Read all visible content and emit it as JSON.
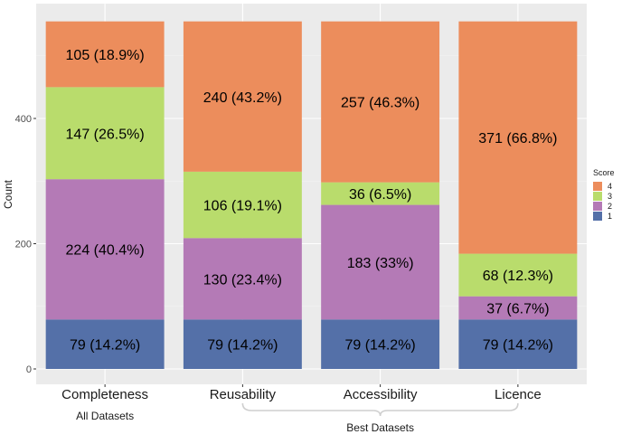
{
  "chart_data": {
    "type": "bar",
    "stacked": true,
    "categories": [
      "Completeness",
      "Reusability",
      "Accessibility",
      "Licence"
    ],
    "groups": [
      {
        "label": "All Datasets",
        "categories": [
          "Completeness"
        ]
      },
      {
        "label": "Best Datasets",
        "categories": [
          "Reusability",
          "Accessibility",
          "Licence"
        ]
      }
    ],
    "ylabel": "Count",
    "xlabel": "",
    "ylim": [
      0,
      555
    ],
    "yticks": [
      0,
      200,
      400
    ],
    "grid": true,
    "legend": {
      "title": "Score",
      "position": "right",
      "order": [
        "4",
        "3",
        "2",
        "1"
      ]
    },
    "series": [
      {
        "name": "1",
        "color": "#5470a8",
        "values": [
          79,
          79,
          79,
          79
        ],
        "labels": [
          "79 (14.2%)",
          "79 (14.2%)",
          "79 (14.2%)",
          "79 (14.2%)"
        ]
      },
      {
        "name": "2",
        "color": "#b47ab6",
        "values": [
          224,
          130,
          183,
          37
        ],
        "labels": [
          "224 (40.4%)",
          "130 (23.4%)",
          "183 (33%)",
          "37 (6.7%)"
        ]
      },
      {
        "name": "3",
        "color": "#b9dc6c",
        "values": [
          147,
          106,
          36,
          68
        ],
        "labels": [
          "147 (26.5%)",
          "106 (19.1%)",
          "36 (6.5%)",
          "68 (12.3%)"
        ]
      },
      {
        "name": "4",
        "color": "#ec8d5c",
        "values": [
          105,
          240,
          257,
          371
        ],
        "labels": [
          "105 (18.9%)",
          "240 (43.2%)",
          "257 (46.3%)",
          "371 (66.8%)"
        ]
      }
    ]
  }
}
